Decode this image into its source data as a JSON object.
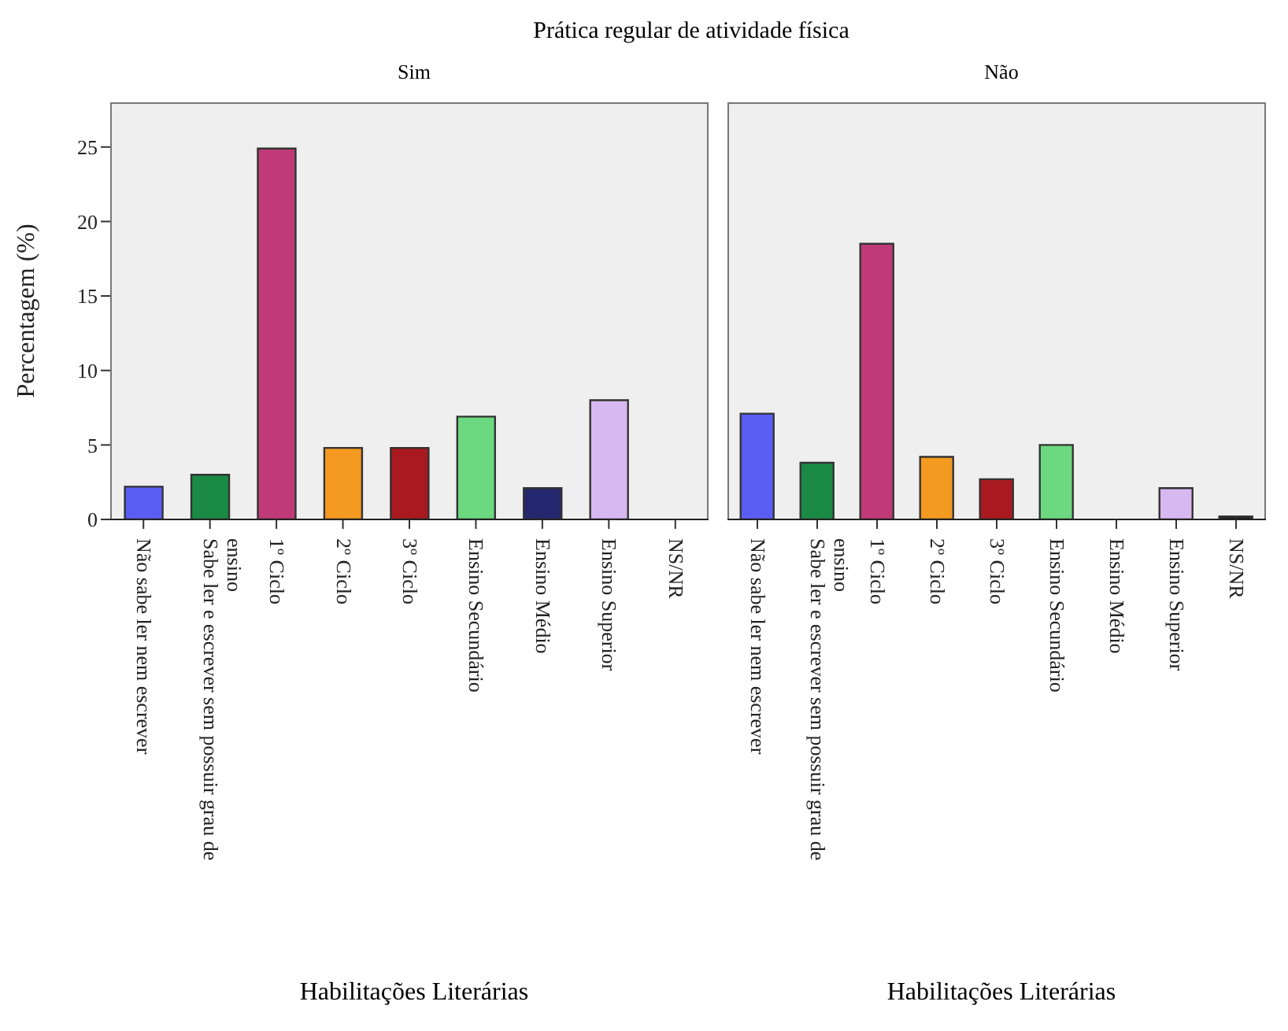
{
  "chart_data": [
    {
      "type": "bar",
      "title": "Prática regular de atividade física",
      "subtitle": "Sim",
      "xlabel": "Habilitações Literárias",
      "ylabel": "Percentagem  (%)",
      "categories": [
        "Não sabe ler nem escrever",
        "Sabe ler e escrever sem possuir grau de ensino",
        "1º Ciclo",
        "2º Ciclo",
        "3º Ciclo",
        "Ensino Secundário",
        "Ensino Médio",
        "Ensino Superior",
        "NS/NR"
      ],
      "values": [
        2.2,
        3.0,
        24.9,
        4.8,
        4.8,
        6.9,
        2.1,
        8.0,
        0
      ],
      "colors": [
        "#5a5ef5",
        "#1a8a45",
        "#c03a78",
        "#f59a20",
        "#a81a20",
        "#6cd880",
        "#24266e",
        "#d8b8f0",
        "#202020"
      ],
      "ylim": [
        0,
        28
      ],
      "yticks": [
        0,
        5,
        10,
        15,
        20,
        25
      ]
    },
    {
      "type": "bar",
      "subtitle": "Não",
      "xlabel": "Habilitações Literárias",
      "categories": [
        "Não sabe ler nem escrever",
        "Sabe ler e escrever sem possuir grau de ensino",
        "1º Ciclo",
        "2º Ciclo",
        "3º Ciclo",
        "Ensino Secundário",
        "Ensino Médio",
        "Ensino Superior",
        "NS/NR"
      ],
      "values": [
        7.1,
        3.8,
        18.5,
        4.2,
        2.7,
        5.0,
        0,
        2.1,
        0.2
      ],
      "colors": [
        "#5a5ef5",
        "#1a8a45",
        "#c03a78",
        "#f59a20",
        "#a81a20",
        "#6cd880",
        "#24266e",
        "#d8b8f0",
        "#202020"
      ],
      "ylim": [
        0,
        28
      ],
      "yticks": [
        0,
        5,
        10,
        15,
        20,
        25
      ],
      "tick_labels": "x"
    }
  ]
}
